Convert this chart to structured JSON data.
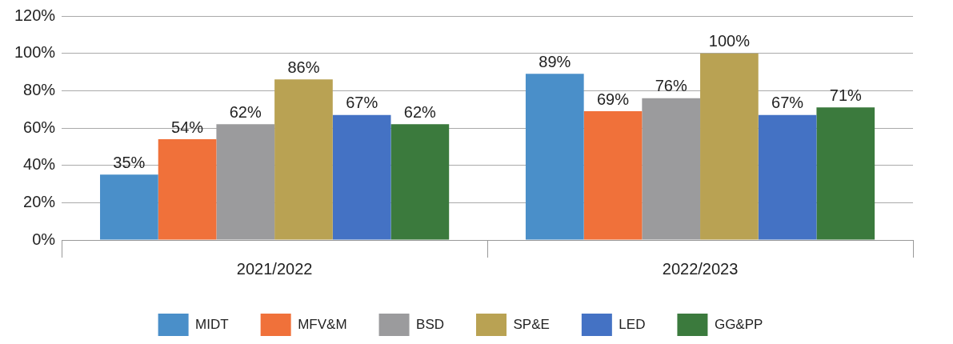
{
  "chart_data": {
    "type": "bar",
    "categories": [
      "2021/2022",
      "2022/2023"
    ],
    "series": [
      {
        "name": "MIDT",
        "color": "#4a8fc9",
        "values": [
          35,
          89
        ],
        "value_labels": [
          "35%",
          "89%"
        ]
      },
      {
        "name": "MFV&M",
        "color": "#f0713a",
        "values": [
          54,
          69
        ],
        "value_labels": [
          "54%",
          "69%"
        ]
      },
      {
        "name": "BSD",
        "color": "#9b9b9d",
        "values": [
          62,
          76
        ],
        "value_labels": [
          "62%",
          "76%"
        ]
      },
      {
        "name": "SP&E",
        "color": "#b9a253",
        "values": [
          86,
          100
        ],
        "value_labels": [
          "86%",
          "100%"
        ]
      },
      {
        "name": "LED",
        "color": "#4472c4",
        "values": [
          67,
          67
        ],
        "value_labels": [
          "67%",
          "67%"
        ]
      },
      {
        "name": "GG&PP",
        "color": "#3b7a3d",
        "values": [
          62,
          71
        ],
        "value_labels": [
          "62%",
          "71%"
        ]
      }
    ],
    "ylim": [
      0,
      120
    ],
    "yticks": [
      {
        "value": 0,
        "label": "0%"
      },
      {
        "value": 20,
        "label": "20%"
      },
      {
        "value": 40,
        "label": "40%"
      },
      {
        "value": 60,
        "label": "60%"
      },
      {
        "value": 80,
        "label": "80%"
      },
      {
        "value": 100,
        "label": "100%"
      },
      {
        "value": 120,
        "label": "120%"
      }
    ],
    "grid": "y",
    "legend": "bottom"
  }
}
